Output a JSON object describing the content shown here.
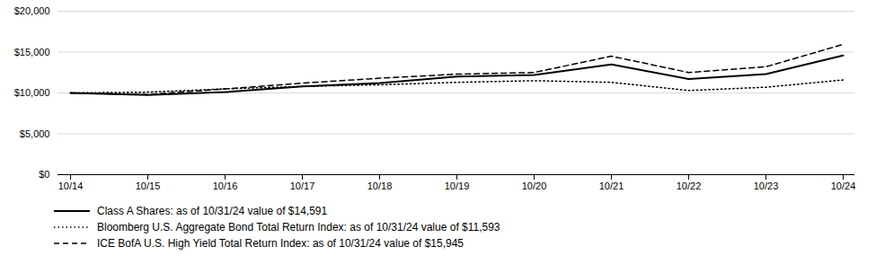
{
  "chart_data": {
    "type": "line",
    "categories": [
      "10/14",
      "10/15",
      "10/16",
      "10/17",
      "10/18",
      "10/19",
      "10/20",
      "10/21",
      "10/22",
      "10/23",
      "10/24"
    ],
    "series": [
      {
        "name": "Class A Shares: as of 10/31/24 value of $14,591",
        "color": "#000000",
        "line_style": "solid",
        "values": [
          10000,
          9750,
          10100,
          10800,
          11200,
          12000,
          12200,
          13500,
          11700,
          12300,
          14591
        ]
      },
      {
        "name": "Bloomberg U.S. Aggregate Bond Total Return Index: as of 10/31/24 value of $11,593",
        "color": "#000000",
        "line_style": "dotted",
        "values": [
          10000,
          10100,
          10500,
          10800,
          11000,
          11300,
          11500,
          11300,
          10300,
          10700,
          11593
        ]
      },
      {
        "name": "ICE BofA U.S. High Yield Total Return Index: as of 10/31/24 value of $15,945",
        "color": "#000000",
        "line_style": "dashed",
        "values": [
          10000,
          9800,
          10500,
          11200,
          11800,
          12300,
          12500,
          14500,
          12500,
          13200,
          15945
        ]
      }
    ],
    "ylim": [
      0,
      20000
    ],
    "yticks": [
      {
        "value": 0,
        "label": "$0"
      },
      {
        "value": 5000,
        "label": "$5,000"
      },
      {
        "value": 10000,
        "label": "$10,000"
      },
      {
        "value": 15000,
        "label": "$15,000"
      },
      {
        "value": 20000,
        "label": "$20,000"
      }
    ],
    "grid": true,
    "legend": "bottom"
  }
}
